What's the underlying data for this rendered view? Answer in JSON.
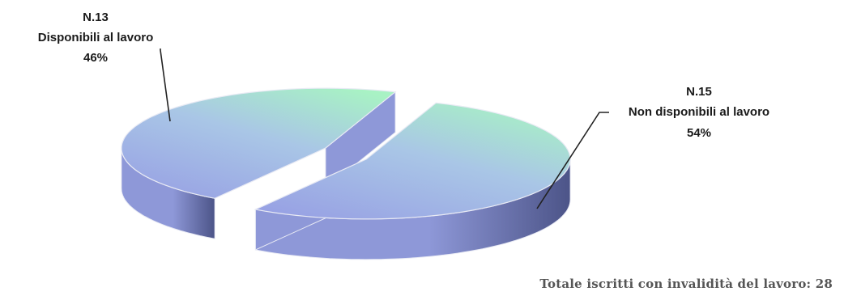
{
  "chart_data": {
    "type": "pie",
    "title": "",
    "slices": [
      {
        "count_label": "N.13",
        "name": "Disponibili al lavoro",
        "value": 13,
        "percent_label": "46%",
        "exploded": true
      },
      {
        "count_label": "N.15",
        "name": "Non disponibili al lavoro",
        "value": 15,
        "percent_label": "54%",
        "exploded": true
      }
    ],
    "total": 28,
    "colors": {
      "top_light": "#a8f2c4",
      "top_mid": "#a9c6e6",
      "top_dark": "#98a2e4",
      "side_light": "#8e98d8",
      "side_dark": "#4c5488",
      "outline": "#e8eaf4",
      "leader": "#222222"
    }
  },
  "footer": {
    "total_text": "Totale iscritti con invalidità del lavoro: 28"
  }
}
